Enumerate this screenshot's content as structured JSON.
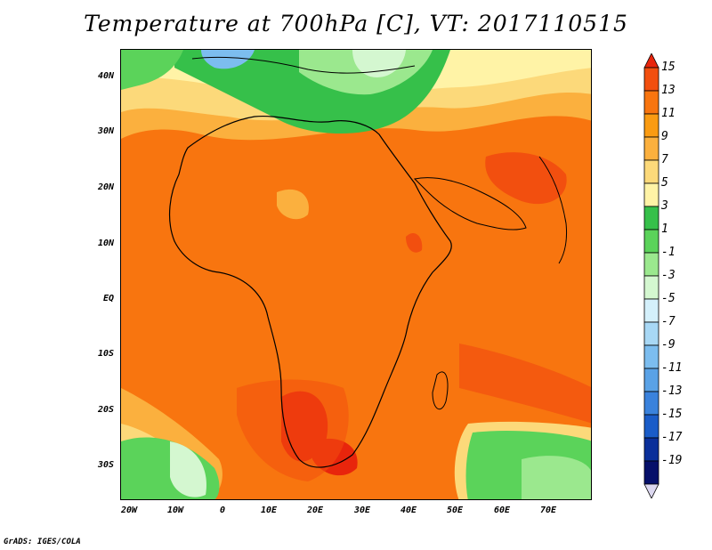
{
  "title": "Temperature at 700hPa [C], VT: 2017110515",
  "credit": "GrADS: IGES/COLA",
  "lat_labels": [
    "40N",
    "30N",
    "20N",
    "10N",
    "EQ",
    "10S",
    "20S",
    "30S"
  ],
  "lon_labels": [
    "20W",
    "10W",
    "0",
    "10E",
    "20E",
    "30E",
    "40E",
    "50E",
    "60E",
    "70E"
  ],
  "colorbar": {
    "labels": [
      "15",
      "13",
      "11",
      "9",
      "7",
      "5",
      "3",
      "1",
      "-1",
      "-3",
      "-5",
      "-7",
      "-9",
      "-11",
      "-13",
      "-15",
      "-17",
      "-19"
    ],
    "colors": [
      "#e8250c",
      "#f24f0f",
      "#f8750f",
      "#fa9b12",
      "#fbb03e",
      "#fcd97a",
      "#fff3a6",
      "#36c04a",
      "#5bd35a",
      "#9be88e",
      "#d4f7d0",
      "#d4f0fb",
      "#a8d8f5",
      "#7cbdef",
      "#5aa2e6",
      "#3a82dc",
      "#1a5cc8",
      "#0a2f9a",
      "#06106a",
      "#dcd8f0"
    ]
  },
  "map": {
    "projection": "lat-lon",
    "region": "Africa and Arabian Sea",
    "colors": {
      "ocean_warm": "#f8750f",
      "land_hot": "#e8250c",
      "mediterranean": "#36c04a",
      "cold_cells": "#7cbdef",
      "southern_ocean": "#5bd35a",
      "coast": "#000000"
    }
  }
}
